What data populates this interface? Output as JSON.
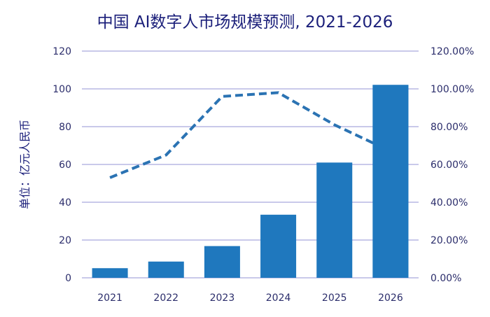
{
  "chart_data": {
    "type": "bar+line",
    "title": "中国 AI数字人市场规模预测, 2021-2026",
    "ylabel": "单位：亿元人民币",
    "categories": [
      "2021",
      "2022",
      "2023",
      "2024",
      "2025",
      "2026"
    ],
    "series": [
      {
        "type": "bar",
        "axis": "left",
        "values": [
          5.1,
          8.6,
          16.8,
          33.4,
          61.0,
          102.1
        ],
        "color": "#1f78be"
      },
      {
        "type": "line",
        "style": "dashed",
        "axis": "right",
        "values": [
          53,
          65,
          96,
          98,
          81,
          67
        ],
        "color": "#2b73b3"
      }
    ],
    "ylim": [
      0,
      120
    ],
    "yticks": [
      "0",
      "20",
      "40",
      "60",
      "80",
      "100",
      "120"
    ],
    "y2lim": [
      0,
      120
    ],
    "y2ticks": [
      "0.00%",
      "20.00%",
      "40.00%",
      "60.00%",
      "80.00%",
      "100.00%",
      "120.00%"
    ],
    "grid": true,
    "grid_color": "#b7b7e3"
  }
}
